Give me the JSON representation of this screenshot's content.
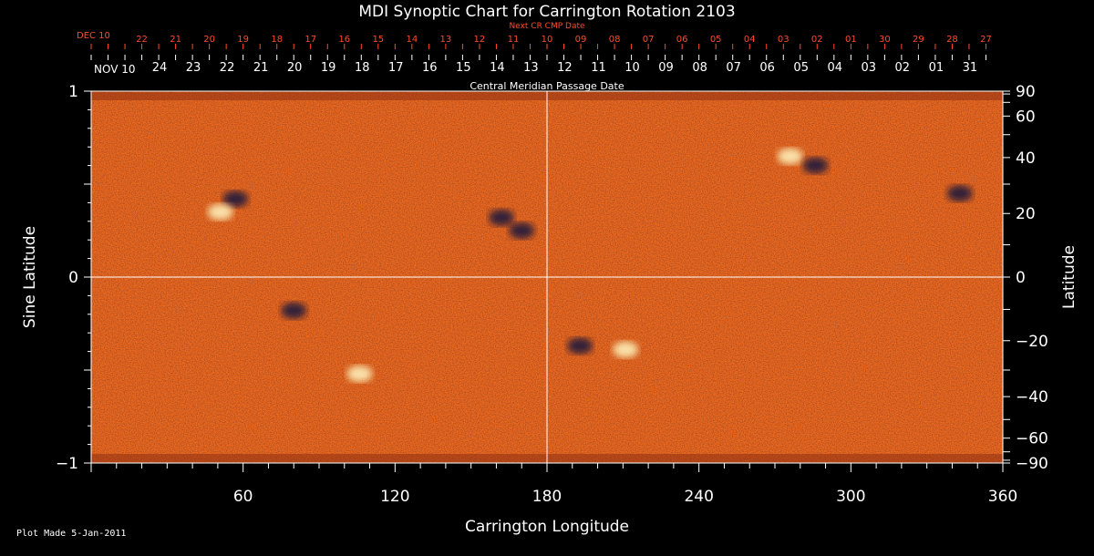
{
  "chart_data": {
    "type": "heatmap",
    "title": "MDI Synoptic Chart for Carrington Rotation 2103",
    "xlabel": "Carrington Longitude",
    "ylabel_left": "Sine Latitude",
    "ylabel_right": "Latitude",
    "xlim": [
      0,
      360
    ],
    "ylim": [
      -1,
      1
    ],
    "x_ticks": [
      60,
      120,
      180,
      240,
      300,
      360
    ],
    "y_left_ticks": [
      {
        "value": 1,
        "label": "1"
      },
      {
        "value": 0,
        "label": "0"
      },
      {
        "value": -1,
        "label": "−1"
      }
    ],
    "y_right_ticks": [
      {
        "lat": 90,
        "label": "90"
      },
      {
        "lat": 60,
        "label": "60"
      },
      {
        "lat": 40,
        "label": "40"
      },
      {
        "lat": 20,
        "label": "20"
      },
      {
        "lat": 0,
        "label": "0"
      },
      {
        "lat": -20,
        "label": "−20"
      },
      {
        "lat": -40,
        "label": "−40"
      },
      {
        "lat": -60,
        "label": "−60"
      },
      {
        "lat": -90,
        "label": "−90"
      }
    ],
    "cmp_axis": {
      "label": "Central Meridian Passage Date",
      "month_label": "NOV 10",
      "dates": [
        "24",
        "23",
        "22",
        "21",
        "20",
        "19",
        "18",
        "17",
        "16",
        "15",
        "14",
        "13",
        "12",
        "11",
        "10",
        "09",
        "08",
        "07",
        "06",
        "05",
        "04",
        "03",
        "02",
        "01",
        "31"
      ],
      "first_longitude": 27
    },
    "next_cr_axis": {
      "label": "Next CR CMP Date",
      "month_label": "DEC 10",
      "dates": [
        "22",
        "21",
        "20",
        "19",
        "18",
        "17",
        "16",
        "15",
        "14",
        "13",
        "12",
        "11",
        "10",
        "09",
        "08",
        "07",
        "06",
        "05",
        "04",
        "03",
        "02",
        "01",
        "30",
        "29",
        "28",
        "27"
      ],
      "first_longitude": 20
    },
    "active_regions": [
      {
        "lon": 57,
        "sinlat": 0.42,
        "polarity": "negative"
      },
      {
        "lon": 51,
        "sinlat": 0.35,
        "polarity": "positive"
      },
      {
        "lon": 162,
        "sinlat": 0.32,
        "polarity": "negative"
      },
      {
        "lon": 170,
        "sinlat": 0.25,
        "polarity": "negative"
      },
      {
        "lon": 276,
        "sinlat": 0.65,
        "polarity": "positive"
      },
      {
        "lon": 286,
        "sinlat": 0.6,
        "polarity": "negative"
      },
      {
        "lon": 193,
        "sinlat": -0.37,
        "polarity": "negative"
      },
      {
        "lon": 211,
        "sinlat": -0.39,
        "polarity": "positive"
      },
      {
        "lon": 106,
        "sinlat": -0.52,
        "polarity": "positive"
      },
      {
        "lon": 80,
        "sinlat": -0.18,
        "polarity": "negative"
      },
      {
        "lon": 343,
        "sinlat": 0.45,
        "polarity": "negative"
      }
    ],
    "colors": {
      "background_field": "#f26a1c",
      "positive": "#fff6c0",
      "negative": "#14143c",
      "grid": "#ffffff",
      "next_cr_text": "#ff4a2a",
      "cmp_text": "#ffffff"
    },
    "grid": true
  },
  "footer": {
    "plot_made": "Plot Made  5-Jan-2011"
  }
}
